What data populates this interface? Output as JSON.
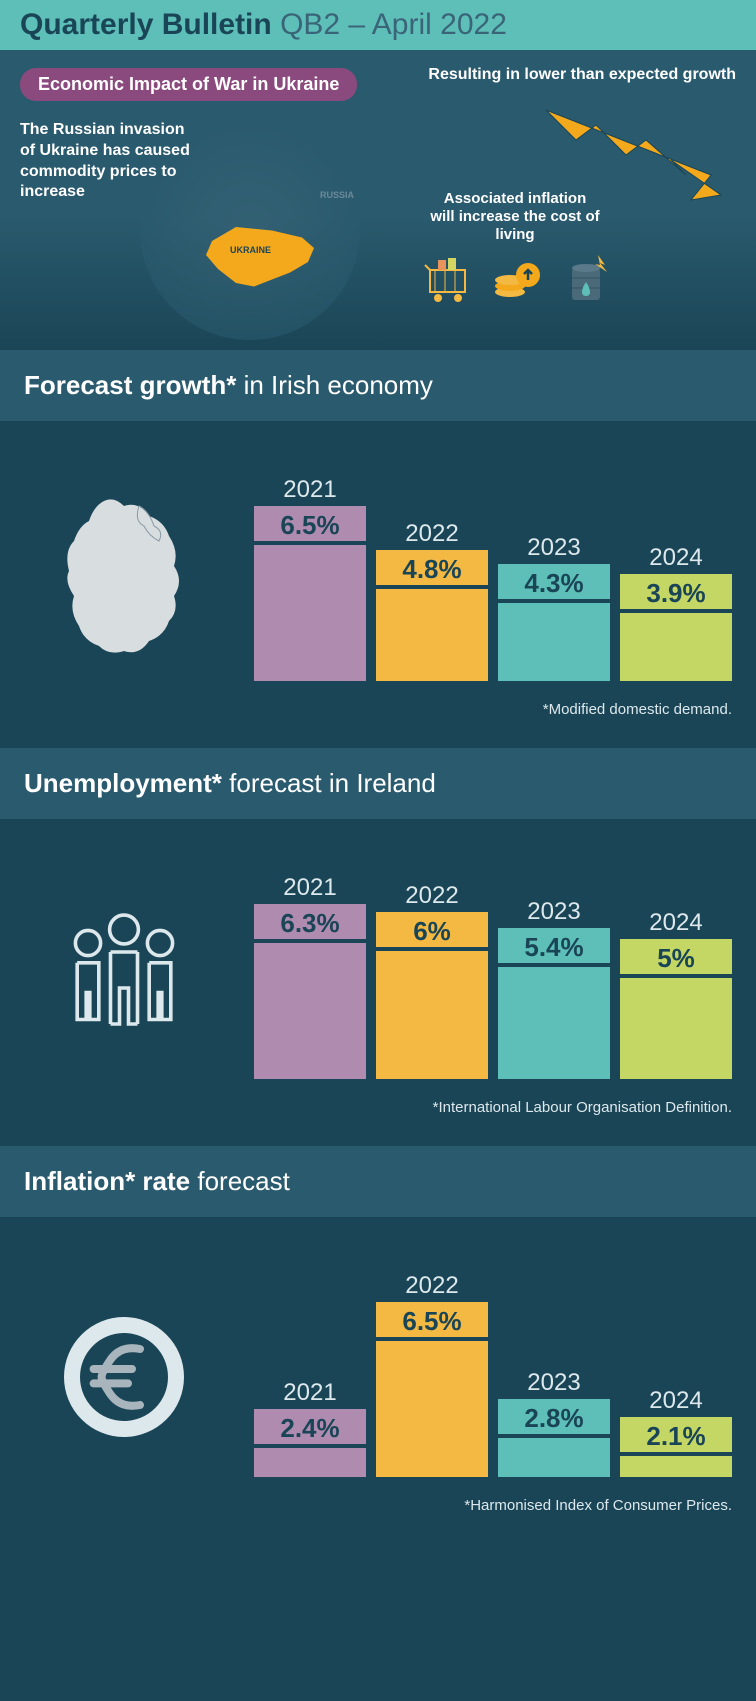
{
  "header": {
    "title_bold": "Quarterly Bulletin",
    "title_light": "QB2 – April 2022"
  },
  "hero": {
    "badge": "Economic Impact of War in Ukraine",
    "text1": "The Russian invasion of Ukraine has caused commodity prices to increase",
    "text2": "Resulting in lower than expected growth",
    "text3": "Associated inflation will increase the cost of living",
    "ukraine_label": "UKRAINE",
    "russia_label": "RUSSIA",
    "ukraine_color": "#f4a91c",
    "arrow_color": "#f4a91c"
  },
  "colors": {
    "bar1": "#b08bb0",
    "bar2": "#f4b942",
    "bar3": "#5dbfb8",
    "bar4": "#c4d664",
    "value_text": "#1a4556",
    "year_text": "#dce8ec"
  },
  "sections": [
    {
      "title_bold": "Forecast growth*",
      "title_light": " in Irish economy",
      "icon": "ireland",
      "footnote": "*Modified domestic demand.",
      "max_value": 6.5,
      "bars": [
        {
          "year": "2021",
          "value": "6.5%",
          "height": 6.5
        },
        {
          "year": "2022",
          "value": "4.8%",
          "height": 4.8
        },
        {
          "year": "2023",
          "value": "4.3%",
          "height": 4.3
        },
        {
          "year": "2024",
          "value": "3.9%",
          "height": 3.9
        }
      ]
    },
    {
      "title_bold": "Unemployment*",
      "title_light": " forecast in Ireland",
      "icon": "people",
      "footnote": "*International Labour Organisation Definition.",
      "max_value": 6.3,
      "bars": [
        {
          "year": "2021",
          "value": "6.3%",
          "height": 6.3
        },
        {
          "year": "2022",
          "value": "6%",
          "height": 6.0
        },
        {
          "year": "2023",
          "value": "5.4%",
          "height": 5.4
        },
        {
          "year": "2024",
          "value": "5%",
          "height": 5.0
        }
      ]
    },
    {
      "title_bold": "Inflation* rate",
      "title_light": " forecast",
      "icon": "euro",
      "footnote": "*Harmonised Index of Consumer Prices.",
      "max_value": 6.5,
      "bars": [
        {
          "year": "2021",
          "value": "2.4%",
          "height": 2.4
        },
        {
          "year": "2022",
          "value": "6.5%",
          "height": 6.5
        },
        {
          "year": "2023",
          "value": "2.8%",
          "height": 2.8
        },
        {
          "year": "2024",
          "value": "2.1%",
          "height": 2.1
        }
      ]
    }
  ]
}
